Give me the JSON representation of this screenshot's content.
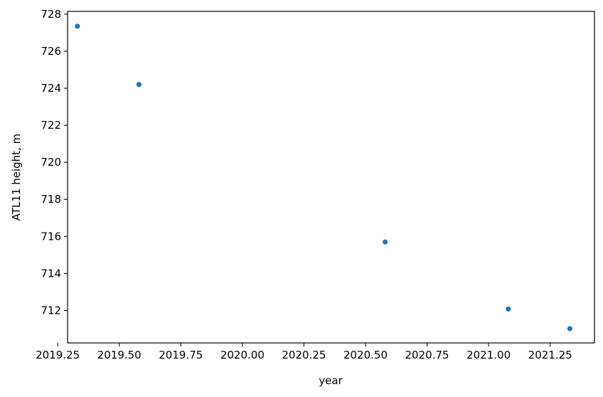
{
  "chart_data": {
    "type": "scatter",
    "title": "",
    "xlabel": "year",
    "ylabel": "ATL11 height, m",
    "xlim": [
      2019.29,
      2021.43
    ],
    "ylim": [
      710.25,
      728.15
    ],
    "xticks": [
      2019.25,
      2019.5,
      2019.75,
      2020.0,
      2020.25,
      2020.5,
      2020.75,
      2021.0,
      2021.25
    ],
    "xtick_labels": [
      "2019.25",
      "2019.50",
      "2019.75",
      "2020.00",
      "2020.25",
      "2020.50",
      "2020.75",
      "2021.00",
      "2021.25"
    ],
    "yticks": [
      712,
      714,
      716,
      718,
      720,
      722,
      724,
      726,
      728
    ],
    "ytick_labels": [
      "712",
      "714",
      "716",
      "718",
      "720",
      "722",
      "724",
      "726",
      "728"
    ],
    "grid": false,
    "legend": false,
    "series": [
      {
        "color": "#1f77b4",
        "x": [
          2019.33,
          2019.58,
          2020.58,
          2021.08,
          2021.33
        ],
        "y": [
          727.35,
          724.2,
          715.7,
          712.08,
          711.02
        ]
      }
    ]
  }
}
